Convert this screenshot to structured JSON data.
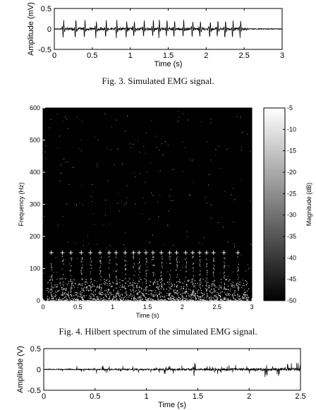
{
  "figure3": {
    "caption": "Fig. 3.  Simulated EMG signal.",
    "chart_data": {
      "type": "line",
      "xlabel": "Time (s)",
      "ylabel": "Amplitude (mV)",
      "xlim": [
        0,
        3
      ],
      "ylim": [
        -0.5,
        0.5
      ],
      "xticks": [
        "0",
        "0.5",
        "1",
        "1.5",
        "2",
        "2.5",
        "3"
      ],
      "yticks": [
        "-0.5",
        "0",
        "0.5"
      ],
      "signal": {
        "description_only": false,
        "active_range": [
          0.1,
          2.55
        ],
        "burst_times": [
          0.12,
          0.28,
          0.4,
          0.55,
          0.68,
          0.82,
          0.95,
          1.05,
          1.18,
          1.3,
          1.38,
          1.48,
          1.58,
          1.7,
          1.82,
          1.92,
          2.05,
          2.15,
          2.25,
          2.35,
          2.45
        ],
        "peak_amplitude": 0.35
      }
    }
  },
  "figure4": {
    "caption": "Fig. 4.  Hilbert spectrum of the simulated EMG signal.",
    "chart_data": {
      "type": "heatmap",
      "xlabel": "Time (s)",
      "ylabel": "Frequency (Hz)",
      "colorbar_label": "Magnitude (dB)",
      "xlim": [
        0,
        3
      ],
      "ylim": [
        0,
        600
      ],
      "clim": [
        -50,
        -5
      ],
      "xticks": [
        "0",
        "0.5",
        "1",
        "1.5",
        "2",
        "2.5",
        "3"
      ],
      "yticks": [
        "0",
        "100",
        "200",
        "300",
        "400",
        "500",
        "600"
      ],
      "colorbar_ticks": [
        "-5",
        "-10",
        "-15",
        "-20",
        "-25",
        "-30",
        "-35",
        "-40",
        "-45",
        "-50"
      ],
      "markers": {
        "symbol": "+",
        "frequency": 150,
        "times": [
          0.12,
          0.28,
          0.4,
          0.55,
          0.68,
          0.82,
          0.95,
          1.05,
          1.18,
          1.3,
          1.38,
          1.48,
          1.58,
          1.7,
          1.82,
          1.92,
          2.05,
          2.15,
          2.25,
          2.35,
          2.45,
          2.6,
          2.8
        ]
      }
    }
  },
  "figure5": {
    "chart_data": {
      "type": "line",
      "xlabel": "Time (s)",
      "ylabel": "Amplitude (V)",
      "xlim": [
        0,
        2.5
      ],
      "ylim": [
        -0.5,
        0.5
      ],
      "xticks": [
        "0",
        "0.5",
        "1",
        "1.5",
        "2",
        "2.5"
      ],
      "yticks": [
        "-0.5",
        "0",
        "0.5"
      ]
    }
  }
}
